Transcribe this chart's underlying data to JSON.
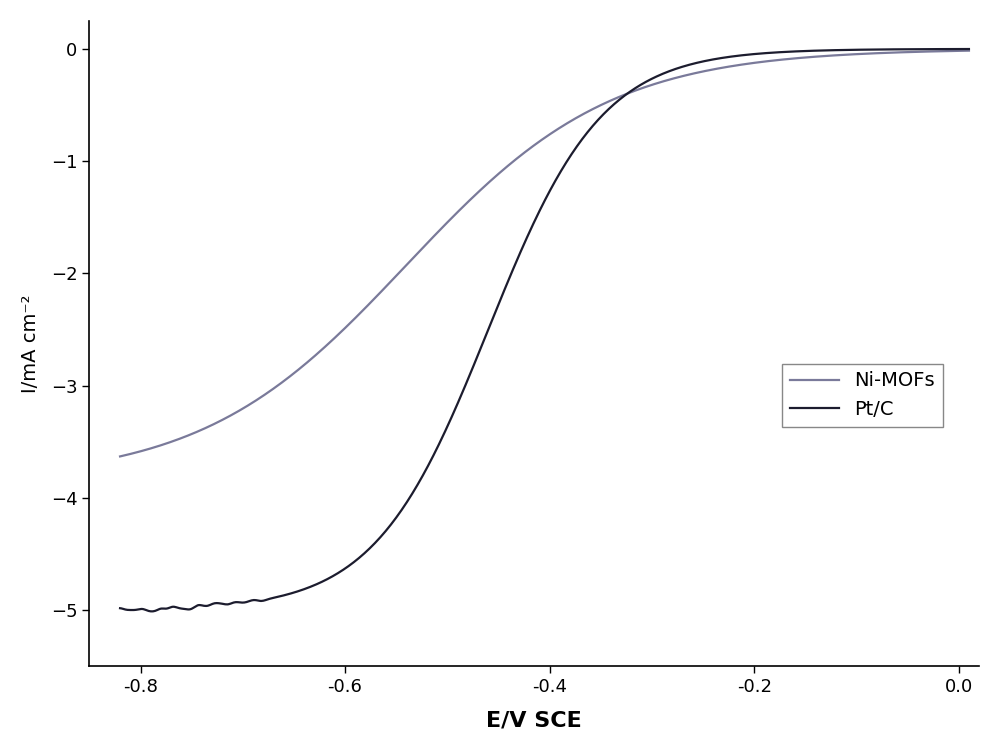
{
  "title": "",
  "xlabel": "E/V SCE",
  "ylabel": "I/mA cm⁻²",
  "xlim": [
    -0.85,
    0.02
  ],
  "ylim": [
    -5.5,
    0.25
  ],
  "xticks": [
    -0.8,
    -0.6,
    -0.4,
    -0.2,
    0.0
  ],
  "yticks": [
    0,
    -1,
    -2,
    -3,
    -4,
    -5
  ],
  "line_color_ptc": "#1c1c2e",
  "line_color_nimofs": "#7a7a9a",
  "legend_labels": [
    "Pt/C",
    "Ni-MOFs"
  ],
  "background_color": "#ffffff",
  "line_width": 1.6,
  "ptc_ilim": -5.0,
  "ptc_half": -0.46,
  "ptc_k": 16,
  "nimofs_ilim": -3.85,
  "nimofs_half": -0.56,
  "nimofs_k": 9
}
